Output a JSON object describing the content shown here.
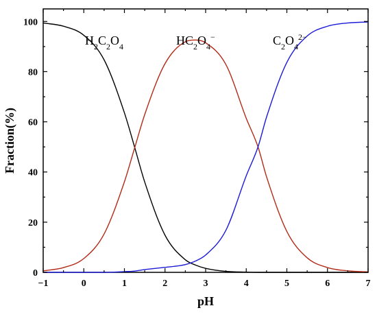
{
  "chart_data": {
    "type": "line",
    "title": "",
    "xlabel": "pH",
    "ylabel": "Fraction(%)",
    "xlim": [
      -1,
      7
    ],
    "ylim": [
      0,
      105
    ],
    "xticks": [
      -1,
      0,
      1,
      2,
      3,
      4,
      5,
      6,
      7
    ],
    "yticks": [
      0,
      20,
      40,
      60,
      80,
      100
    ],
    "grid": false,
    "x": [
      -1.0,
      -0.5,
      0.0,
      0.5,
      1.0,
      1.25,
      1.5,
      2.0,
      2.5,
      2.75,
      3.0,
      3.5,
      4.0,
      4.29,
      4.5,
      5.0,
      5.5,
      6.0,
      6.5,
      7.0
    ],
    "series": [
      {
        "name": "H2C2O4",
        "color": "#000000",
        "values": [
          99.4,
          98.1,
          94.5,
          84.7,
          63.6,
          50.0,
          36.0,
          14.8,
          5.0,
          2.9,
          1.6,
          0.4,
          0.1,
          0.0,
          0.0,
          0.0,
          0.0,
          0.0,
          0.0,
          0.0
        ]
      },
      {
        "name": "HC2O4−",
        "color": "#b22a16",
        "values": [
          0.6,
          1.9,
          5.5,
          15.3,
          36.1,
          49.5,
          62.9,
          83.2,
          91.9,
          92.6,
          91.5,
          82.8,
          61.4,
          50.0,
          38.1,
          16.3,
          5.8,
          1.9,
          0.6,
          0.2
        ]
      },
      {
        "name": "C2O42−",
        "color": "#1a1ad6",
        "values": [
          0.0,
          0.0,
          0.0,
          0.0,
          0.3,
          0.5,
          1.1,
          2.0,
          3.1,
          4.5,
          6.9,
          16.8,
          38.5,
          50.0,
          61.9,
          83.7,
          94.2,
          98.1,
          99.4,
          99.8
        ]
      }
    ],
    "annotations": {
      "h2c2o4": {
        "base": "H",
        "s1": "2",
        "mid": "C",
        "s2": "2",
        "end": "O",
        "s3": "4"
      },
      "hc2o4": {
        "base": "HC",
        "s1": "2",
        "mid": "O",
        "s2": "4",
        "sup": "−"
      },
      "c2o4": {
        "base": "C",
        "s1": "2",
        "mid": "O",
        "s2": "4",
        "sup": "2−"
      }
    }
  }
}
